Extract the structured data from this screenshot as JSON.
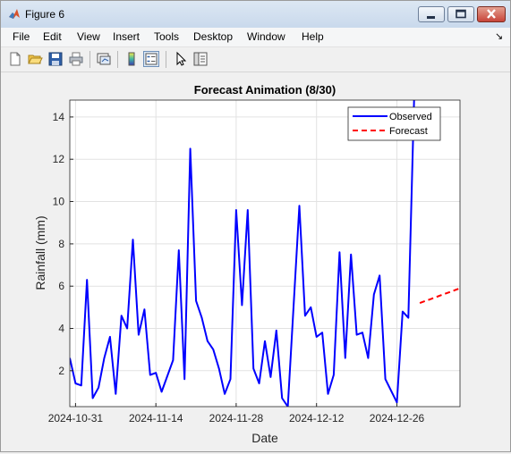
{
  "window": {
    "title": "Figure 6"
  },
  "menu": {
    "items": [
      "File",
      "Edit",
      "View",
      "Insert",
      "Tools",
      "Desktop",
      "Window",
      "Help"
    ],
    "overflow_arrow": "↘"
  },
  "toolbar": {
    "icons": [
      "new-figure-icon",
      "open-file-icon",
      "save-icon",
      "print-icon",
      "link-plot-icon",
      "colorbar-icon",
      "legend-icon",
      "pointer-icon",
      "property-inspector-icon"
    ]
  },
  "colors": {
    "observed": "#0000ff",
    "forecast": "#ff0000"
  },
  "chart_data": {
    "type": "line",
    "title": "Forecast Animation (8/30)",
    "xlabel": "Date",
    "ylabel": "Rainfall (mm)",
    "x_tick_labels": [
      "2024-10-31",
      "2024-11-14",
      "2024-11-28",
      "2024-12-12",
      "2024-12-26"
    ],
    "x_ticks": [
      "2024-10-31",
      "2024-11-14",
      "2024-11-28",
      "2024-12-12",
      "2024-12-26"
    ],
    "xlim": [
      "2024-10-30",
      "2025-01-06"
    ],
    "y_ticks": [
      2,
      4,
      6,
      8,
      10,
      12,
      14
    ],
    "ylim": [
      0.3,
      14.8
    ],
    "grid": true,
    "legend": {
      "position": "top-right",
      "entries": [
        "Observed",
        "Forecast"
      ]
    },
    "series": [
      {
        "name": "Observed",
        "style": "solid",
        "color": "#0000ff",
        "points": [
          [
            "2024-10-30",
            2.6
          ],
          [
            "2024-10-31",
            1.4
          ],
          [
            "2024-11-01",
            1.3
          ],
          [
            "2024-11-02",
            6.3
          ],
          [
            "2024-11-03",
            0.7
          ],
          [
            "2024-11-04",
            1.2
          ],
          [
            "2024-11-05",
            2.6
          ],
          [
            "2024-11-06",
            3.6
          ],
          [
            "2024-11-07",
            0.9
          ],
          [
            "2024-11-08",
            4.6
          ],
          [
            "2024-11-09",
            4.0
          ],
          [
            "2024-11-10",
            8.2
          ],
          [
            "2024-11-11",
            3.7
          ],
          [
            "2024-11-12",
            4.9
          ],
          [
            "2024-11-13",
            1.8
          ],
          [
            "2024-11-14",
            1.9
          ],
          [
            "2024-11-15",
            1.0
          ],
          [
            "2024-11-17",
            2.5
          ],
          [
            "2024-11-18",
            7.7
          ],
          [
            "2024-11-19",
            1.6
          ],
          [
            "2024-11-20",
            12.5
          ],
          [
            "2024-11-21",
            5.3
          ],
          [
            "2024-11-22",
            4.5
          ],
          [
            "2024-11-23",
            3.4
          ],
          [
            "2024-11-24",
            3.0
          ],
          [
            "2024-11-25",
            2.1
          ],
          [
            "2024-11-26",
            0.9
          ],
          [
            "2024-11-27",
            1.6
          ],
          [
            "2024-11-28",
            9.6
          ],
          [
            "2024-11-29",
            5.1
          ],
          [
            "2024-11-30",
            9.6
          ],
          [
            "2024-12-01",
            2.1
          ],
          [
            "2024-12-02",
            1.4
          ],
          [
            "2024-12-03",
            3.4
          ],
          [
            "2024-12-04",
            1.7
          ],
          [
            "2024-12-05",
            3.9
          ],
          [
            "2024-12-06",
            0.7
          ],
          [
            "2024-12-07",
            0.3
          ],
          [
            "2024-12-09",
            9.8
          ],
          [
            "2024-12-10",
            4.6
          ],
          [
            "2024-12-11",
            5.0
          ],
          [
            "2024-12-12",
            3.6
          ],
          [
            "2024-12-13",
            3.8
          ],
          [
            "2024-12-14",
            0.9
          ],
          [
            "2024-12-15",
            1.8
          ],
          [
            "2024-12-16",
            7.6
          ],
          [
            "2024-12-17",
            2.6
          ],
          [
            "2024-12-18",
            7.5
          ],
          [
            "2024-12-19",
            3.7
          ],
          [
            "2024-12-20",
            3.8
          ],
          [
            "2024-12-21",
            2.6
          ],
          [
            "2024-12-22",
            5.6
          ],
          [
            "2024-12-23",
            6.5
          ],
          [
            "2024-12-24",
            1.6
          ],
          [
            "2024-12-26",
            0.5
          ],
          [
            "2024-12-27",
            4.8
          ],
          [
            "2024-12-28",
            4.5
          ],
          [
            "2024-12-29",
            14.8
          ]
        ]
      },
      {
        "name": "Forecast",
        "style": "dashed",
        "color": "#ff0000",
        "points": [
          [
            "2024-12-30",
            5.2
          ],
          [
            "2024-12-31",
            5.3
          ],
          [
            "2025-01-01",
            5.4
          ],
          [
            "2025-01-02",
            5.5
          ],
          [
            "2025-01-03",
            5.6
          ],
          [
            "2025-01-04",
            5.7
          ],
          [
            "2025-01-05",
            5.8
          ],
          [
            "2025-01-06",
            5.9
          ]
        ]
      }
    ]
  }
}
